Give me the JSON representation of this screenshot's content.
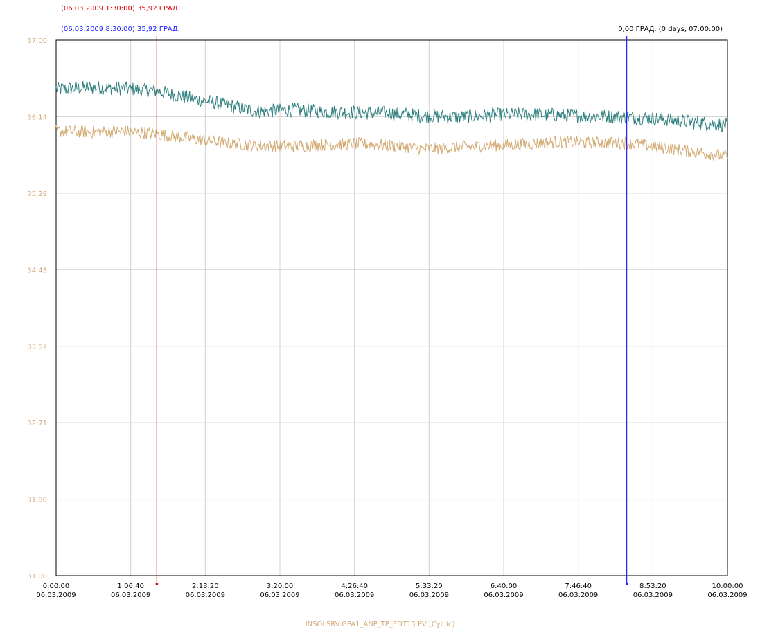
{
  "header": {
    "cursor_a_text": "(06.03.2009 1:30:00) 35,92 ГРАД.",
    "cursor_b_text": "(06.03.2009 8:30:00) 35,92 ГРАД.",
    "delta_text": "0,00 ГРАД. (0 days, 07:00:00)"
  },
  "footer": {
    "tag_text": "INSOLSRV:GPA1_ANP_TP_EDT15.PV [Cyclic]"
  },
  "colors": {
    "cursor_a": "#e00000",
    "cursor_b": "#2020ff",
    "series_teal": "#2e7f7f",
    "series_tan": "#d2aa72",
    "y_labels": "#d6a878",
    "grid": "#d0d0d0",
    "axes": "#000000"
  },
  "chart_data": {
    "type": "line",
    "title": "",
    "xlabel": "",
    "ylabel": "",
    "xlim_hours": [
      0,
      10
    ],
    "ylim": [
      31.0,
      37.0
    ],
    "grid": true,
    "y_ticks": [
      "37,00",
      "36,14",
      "35,29",
      "34,43",
      "33,57",
      "32,71",
      "31,86",
      "31,00"
    ],
    "x_ticks": [
      {
        "time": "0:00:00",
        "date": "06.03.2009"
      },
      {
        "time": "1:06:40",
        "date": "06.03.2009"
      },
      {
        "time": "2:13:20",
        "date": "06.03.2009"
      },
      {
        "time": "3:20:00",
        "date": "06.03.2009"
      },
      {
        "time": "4:26:40",
        "date": "06.03.2009"
      },
      {
        "time": "5:33:20",
        "date": "06.03.2009"
      },
      {
        "time": "6:40:00",
        "date": "06.03.2009"
      },
      {
        "time": "7:46:40",
        "date": "06.03.2009"
      },
      {
        "time": "8:53:20",
        "date": "06.03.2009"
      },
      {
        "time": "10:00:00",
        "date": "06.03.2009"
      }
    ],
    "cursors": [
      {
        "time_hours": 1.5,
        "value": 35.92
      },
      {
        "time_hours": 8.5,
        "value": 35.92
      }
    ],
    "series": [
      {
        "color": "#2e7f7f",
        "x_hours": [
          0,
          0.5,
          1.0,
          1.5,
          2.0,
          2.5,
          3.0,
          3.5,
          4.0,
          4.5,
          5.0,
          5.5,
          6.0,
          6.5,
          7.0,
          7.5,
          8.0,
          8.5,
          9.0,
          9.5,
          10.0
        ],
        "values": [
          36.45,
          36.47,
          36.46,
          36.43,
          36.35,
          36.28,
          36.2,
          36.22,
          36.2,
          36.19,
          36.18,
          36.15,
          36.14,
          36.16,
          36.17,
          36.16,
          36.15,
          36.14,
          36.12,
          36.08,
          36.05
        ],
        "noise": 0.08
      },
      {
        "color": "#d2aa72",
        "x_hours": [
          0,
          0.5,
          1.0,
          1.5,
          2.0,
          2.5,
          3.0,
          3.5,
          4.0,
          4.5,
          5.0,
          5.5,
          6.0,
          6.5,
          7.0,
          7.5,
          8.0,
          8.5,
          9.0,
          9.5,
          10.0
        ],
        "values": [
          35.98,
          35.97,
          35.98,
          35.95,
          35.9,
          35.85,
          35.82,
          35.81,
          35.83,
          35.84,
          35.82,
          35.78,
          35.8,
          35.82,
          35.84,
          35.86,
          35.85,
          35.85,
          35.8,
          35.75,
          35.7
        ],
        "noise": 0.07
      }
    ]
  }
}
